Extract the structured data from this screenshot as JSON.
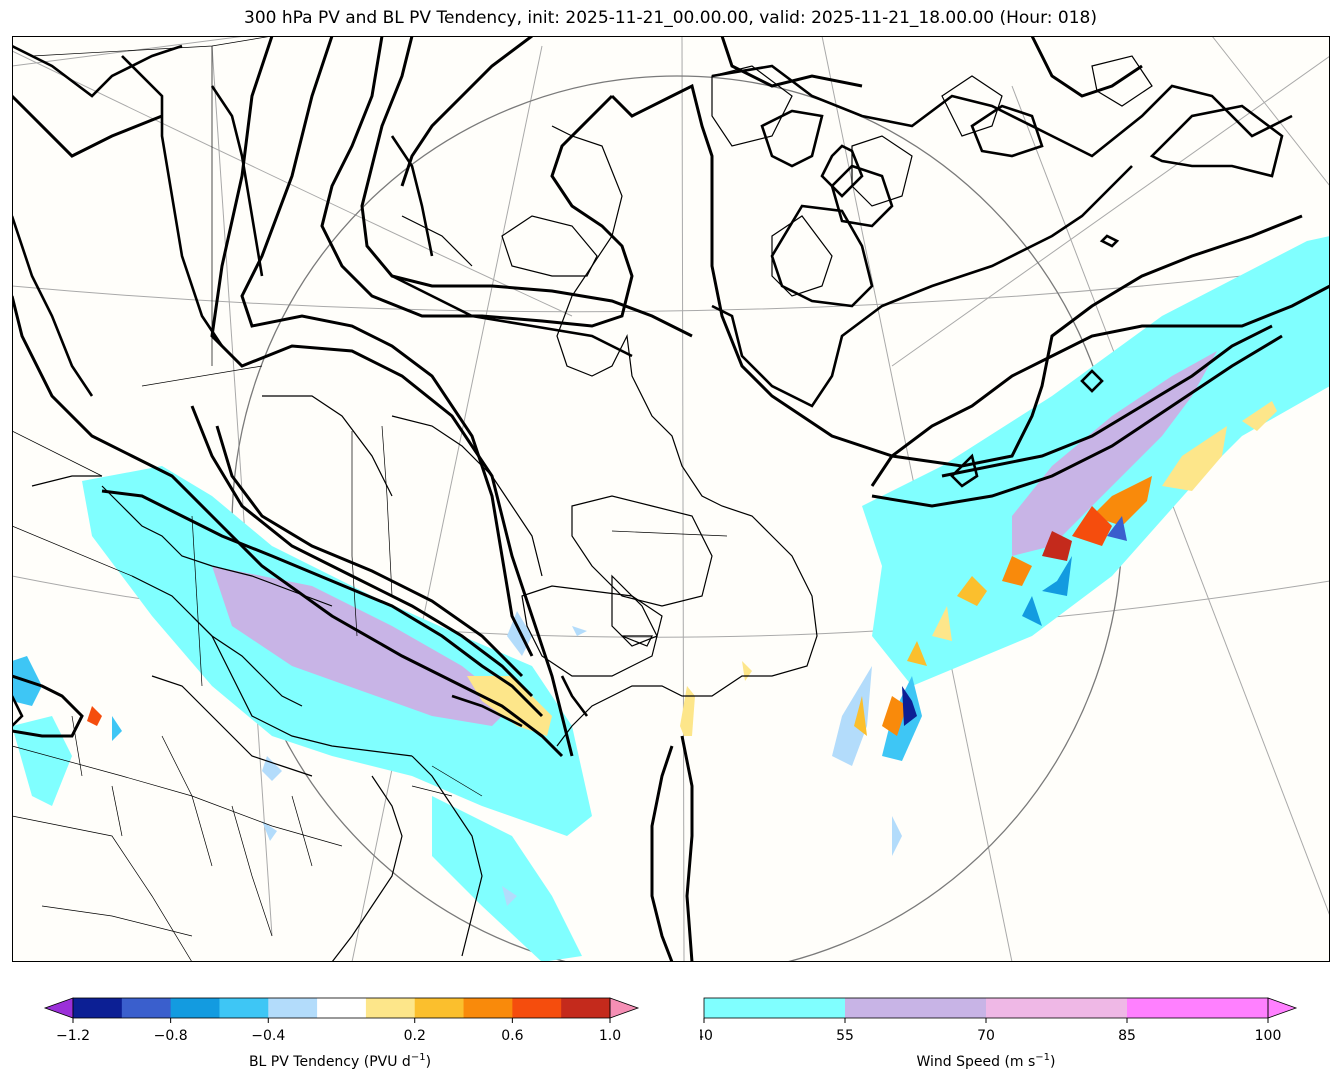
{
  "title": "300 hPa PV and BL PV Tendency, init: 2025-11-21_00.00.00, valid: 2025-11-21_18.00.00 (Hour: 018)",
  "map": {
    "projection": "polar-stereographic",
    "fields": {
      "contours": "300 hPa PV (black contours)",
      "shading_wind": "Wind Speed",
      "shading_tendency": "BL PV Tendency"
    }
  },
  "colorbar_tendency": {
    "label_main": "BL PV Tendency (PVU d",
    "label_exp": "−1",
    "label_close": ")",
    "tick_labels": [
      "−1.2",
      "−0.8",
      "−0.4",
      "0.2",
      "0.6",
      "1.0"
    ],
    "colors": [
      "#9b30d9",
      "#0c1f94",
      "#3a5fcd",
      "#139be0",
      "#3ec6f5",
      "#b3dcfb",
      "#ffffff",
      "#fde68a",
      "#fbbf2d",
      "#f98a0b",
      "#f54d0d",
      "#c42a1c",
      "#f58fb5"
    ]
  },
  "colorbar_wind": {
    "label_main": "Wind Speed (m s",
    "label_exp": "−1",
    "label_close": ")",
    "tick_labels": [
      "40",
      "55",
      "70",
      "85",
      "100"
    ],
    "colors": [
      "#80ffff",
      "#c8b4e6",
      "#efb8e6",
      "#ff80ff"
    ]
  }
}
